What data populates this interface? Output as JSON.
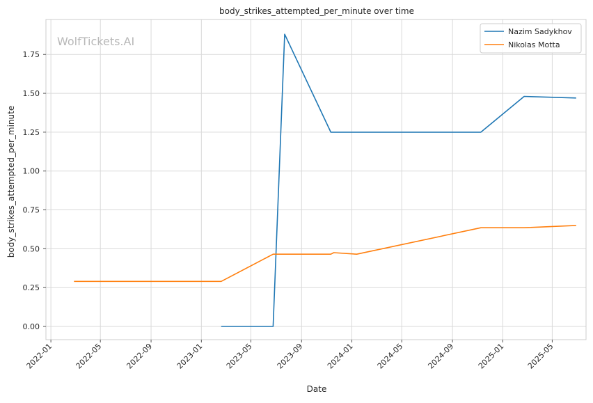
{
  "chart_data": {
    "type": "line",
    "title": "body_strikes_attempted_per_minute over time",
    "xlabel": "Date",
    "ylabel": "body_strikes_attempted_per_minute",
    "watermark": "WolfTickets.AI",
    "ylim": [
      -0.085,
      1.975
    ],
    "xlim": [
      "2021-12-20",
      "2025-07-22"
    ],
    "grid": true,
    "legend_position": "top-right",
    "x_ticks": [
      "2022-01",
      "2022-05",
      "2022-09",
      "2023-01",
      "2023-05",
      "2023-09",
      "2024-01",
      "2024-05",
      "2024-09",
      "2025-01",
      "2025-05"
    ],
    "y_ticks": [
      0.0,
      0.25,
      0.5,
      0.75,
      1.0,
      1.25,
      1.5,
      1.75
    ],
    "y_tick_labels": [
      "0.00",
      "0.25",
      "0.50",
      "0.75",
      "1.00",
      "1.25",
      "1.50",
      "1.75"
    ],
    "series": [
      {
        "name": "Nazim Sadykhov",
        "color": "#1f77b4",
        "points": [
          {
            "x": "2023-02-18",
            "y": 0.0
          },
          {
            "x": "2023-06-24",
            "y": 0.0
          },
          {
            "x": "2023-07-22",
            "y": 1.88
          },
          {
            "x": "2023-11-11",
            "y": 1.25
          },
          {
            "x": "2024-11-09",
            "y": 1.25
          },
          {
            "x": "2025-02-22",
            "y": 1.48
          },
          {
            "x": "2025-06-28",
            "y": 1.47
          }
        ]
      },
      {
        "name": "Nikolas Motta",
        "color": "#ff7f0e",
        "points": [
          {
            "x": "2022-02-26",
            "y": 0.29
          },
          {
            "x": "2023-02-18",
            "y": 0.29
          },
          {
            "x": "2023-06-24",
            "y": 0.465
          },
          {
            "x": "2023-11-11",
            "y": 0.465
          },
          {
            "x": "2023-11-18",
            "y": 0.475
          },
          {
            "x": "2024-01-13",
            "y": 0.465
          },
          {
            "x": "2024-11-09",
            "y": 0.635
          },
          {
            "x": "2025-02-22",
            "y": 0.635
          },
          {
            "x": "2025-06-28",
            "y": 0.65
          }
        ]
      }
    ]
  }
}
